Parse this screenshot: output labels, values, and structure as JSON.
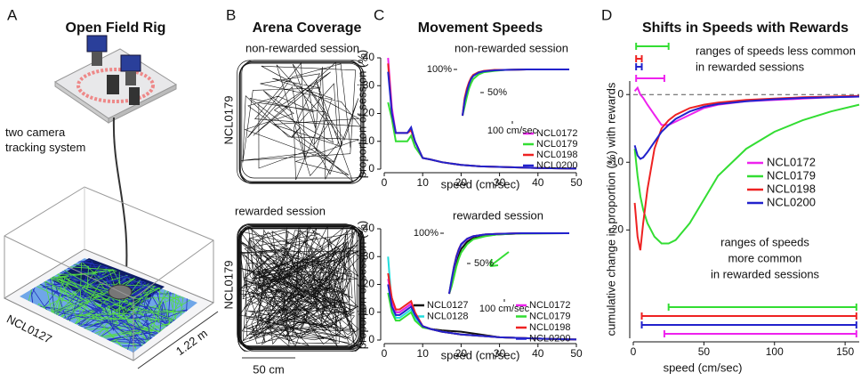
{
  "panels": {
    "A": {
      "letter": "A",
      "title": "Open Field Rig",
      "camera_label_lines": [
        "two camera",
        "tracking system"
      ],
      "animal": "NCL0127",
      "size": "1.22 m"
    },
    "B": {
      "letter": "B",
      "title": "Arena Coverage",
      "top_session": "non-rewarded session",
      "top_animal": "NCL0179",
      "bottom_session": "rewarded session",
      "bottom_animal": "NCL0179",
      "scale": "50 cm"
    },
    "C": {
      "letter": "C",
      "title": "Movement Speeds"
    },
    "D": {
      "letter": "D",
      "title": "Shifts in Speeds with Rewards"
    }
  },
  "chart_data": [
    {
      "type": "line",
      "subtitle": "non-rewarded session",
      "xlabel": "speed (cm/sec)",
      "ylabel": "proportion of session (%)",
      "xlim": [
        0,
        50
      ],
      "xticks": [
        0,
        10,
        20,
        30,
        40,
        50
      ],
      "ylim": [
        0,
        40
      ],
      "yticks": [
        0,
        10,
        20,
        30,
        40
      ],
      "x": [
        1,
        2,
        3,
        4,
        5,
        6,
        7,
        8,
        10,
        12,
        15,
        20,
        25,
        30,
        40,
        50
      ],
      "series": [
        {
          "name": "NCL0172",
          "color": "#ee22ee",
          "values": [
            40,
            22,
            13,
            13,
            13,
            13,
            14,
            10,
            4,
            3.5,
            2.5,
            1.5,
            1,
            0.8,
            0.4,
            0.2
          ],
          "cumulative": [
            0,
            35,
            55,
            70,
            80,
            86,
            93,
            96,
            98,
            99,
            100,
            100
          ]
        },
        {
          "name": "NCL0179",
          "color": "#33dd33",
          "values": [
            24,
            18,
            10,
            10,
            10,
            10,
            12,
            8,
            4,
            3.5,
            2.5,
            1.5,
            1,
            0.8,
            0.4,
            0.2
          ],
          "cumulative": [
            0,
            20,
            40,
            58,
            70,
            79,
            89,
            94,
            97,
            99,
            100,
            100
          ]
        },
        {
          "name": "NCL0198",
          "color": "#ee2222",
          "values": [
            38,
            20,
            13,
            13,
            13,
            13,
            14,
            10,
            4,
            3.5,
            2.5,
            1.5,
            1,
            0.8,
            0.4,
            0.2
          ],
          "cumulative": [
            0,
            38,
            58,
            72,
            82,
            88,
            94,
            97,
            99,
            99,
            100,
            100
          ]
        },
        {
          "name": "NCL0200",
          "color": "#2222cc",
          "values": [
            35,
            20,
            13,
            13,
            13,
            13,
            15,
            10,
            4,
            3.5,
            2.5,
            1.5,
            1,
            0.8,
            0.4,
            0.2
          ],
          "cumulative": [
            0,
            33,
            52,
            68,
            79,
            86,
            93,
            96,
            98,
            99,
            100,
            100
          ]
        }
      ],
      "inset": {
        "xlim": [
          0,
          100
        ],
        "ylim": [
          0,
          100
        ],
        "x": [
          0,
          2,
          4,
          6,
          8,
          10,
          15,
          20,
          30,
          40,
          60,
          100
        ],
        "yticks": [
          {
            "value": 100,
            "label": "100%"
          },
          {
            "value": 50,
            "label": "50%"
          }
        ],
        "xticks": [
          {
            "value": 100,
            "label": "100 cm/sec"
          }
        ]
      }
    },
    {
      "type": "line",
      "subtitle": "rewarded session",
      "xlabel": "speed (cm/sec)",
      "ylabel": "proportion of session (%)",
      "xlim": [
        0,
        50
      ],
      "xticks": [
        0,
        10,
        20,
        30,
        40,
        50
      ],
      "ylim": [
        0,
        40
      ],
      "yticks": [
        0,
        10,
        20,
        30,
        40
      ],
      "x": [
        1,
        2,
        3,
        4,
        5,
        6,
        7,
        8,
        10,
        12,
        15,
        20,
        25,
        30,
        40,
        50
      ],
      "series": [
        {
          "name": "NCL0127",
          "color": "#111111",
          "values": [
            20,
            15,
            10,
            10,
            11,
            12,
            13,
            9,
            5,
            4,
            3.5,
            3,
            2,
            1,
            0.5,
            0.2
          ],
          "cumulative": [
            0,
            15,
            35,
            52,
            65,
            74,
            86,
            92,
            96,
            98,
            99.5,
            100
          ]
        },
        {
          "name": "NCL0128",
          "color": "#22dddd",
          "values": [
            30,
            12,
            8,
            8,
            9,
            10,
            11,
            8,
            5,
            4,
            3,
            2,
            1.5,
            1,
            0.5,
            0.2
          ],
          "cumulative": [
            0,
            25,
            45,
            60,
            72,
            80,
            90,
            95,
            98,
            99,
            100,
            100
          ]
        },
        {
          "name": "NCL0172",
          "color": "#ee22ee",
          "values": [
            22,
            14,
            10,
            10,
            11,
            12,
            13,
            9,
            5,
            4,
            3,
            2,
            1.5,
            1,
            0.5,
            0.2
          ],
          "cumulative": [
            0,
            20,
            42,
            60,
            72,
            81,
            90,
            95,
            98,
            99,
            100,
            100
          ]
        },
        {
          "name": "NCL0179",
          "color": "#33dd33",
          "values": [
            17,
            10,
            7,
            7,
            8,
            9,
            10,
            7,
            4.5,
            4,
            3,
            2,
            1.5,
            1,
            0.5,
            0.2
          ],
          "cumulative": [
            0,
            12,
            28,
            45,
            58,
            68,
            82,
            90,
            95,
            98,
            99.5,
            100
          ]
        },
        {
          "name": "NCL0198",
          "color": "#ee2222",
          "values": [
            24,
            15,
            11,
            11,
            12,
            13,
            14,
            10,
            5,
            4,
            3,
            2,
            1.5,
            1,
            0.5,
            0.2
          ],
          "cumulative": [
            0,
            22,
            45,
            62,
            74,
            82,
            91,
            95,
            98,
            99,
            100,
            100
          ]
        },
        {
          "name": "NCL0200",
          "color": "#2222cc",
          "values": [
            20,
            12,
            9,
            9,
            10,
            11,
            12,
            9,
            5,
            4,
            3,
            2,
            1.5,
            1,
            0.5,
            0.2
          ],
          "cumulative": [
            0,
            22,
            44,
            61,
            73,
            82,
            91,
            95,
            98,
            99,
            100,
            100
          ]
        }
      ],
      "inset": {
        "xlim": [
          0,
          100
        ],
        "ylim": [
          0,
          100
        ],
        "x": [
          0,
          2,
          4,
          6,
          8,
          10,
          15,
          20,
          30,
          40,
          60,
          100
        ],
        "yticks": [
          {
            "value": 100,
            "label": "100%"
          },
          {
            "value": 50,
            "label": "50%"
          }
        ],
        "xticks": [
          {
            "value": 100,
            "label": "100 cm/sec"
          }
        ]
      }
    },
    {
      "type": "line",
      "xlabel": "speed (cm/sec)",
      "ylabel": "cumulative change in proportion (%) with rewards",
      "xlim": [
        0,
        160
      ],
      "xticks": [
        0,
        50,
        100,
        150
      ],
      "ylim": [
        -36,
        2
      ],
      "yticks": [
        0,
        -10,
        -20
      ],
      "hlines": [
        0
      ],
      "x": [
        1,
        3,
        5,
        7,
        10,
        15,
        20,
        25,
        30,
        40,
        50,
        60,
        80,
        100,
        120,
        140,
        160
      ],
      "series": [
        {
          "name": "NCL0172",
          "color": "#ee22ee",
          "values": [
            0.5,
            1,
            0,
            -0.5,
            -1.5,
            -3,
            -4.5,
            -4.5,
            -4,
            -3,
            -2,
            -1.5,
            -1,
            -0.8,
            -0.6,
            -0.4,
            -0.3
          ],
          "less_common": [
            2,
            22
          ],
          "more_common": [
            22,
            158
          ]
        },
        {
          "name": "NCL0179",
          "color": "#33dd33",
          "values": [
            -8,
            -12,
            -15,
            -17,
            -19,
            -21,
            -22,
            -22,
            -21.5,
            -19,
            -15.5,
            -12,
            -8,
            -5.5,
            -3.8,
            -2.5,
            -1.5
          ],
          "less_common": [
            2,
            25
          ],
          "more_common": [
            25,
            158
          ]
        },
        {
          "name": "NCL0198",
          "color": "#ee2222",
          "values": [
            -16,
            -21,
            -23,
            -19,
            -14,
            -8,
            -5,
            -3.8,
            -3,
            -2,
            -1.5,
            -1.2,
            -0.8,
            -0.6,
            -0.4,
            -0.3,
            -0.2
          ],
          "less_common": [
            2,
            6
          ],
          "more_common": [
            6,
            158
          ]
        },
        {
          "name": "NCL0200",
          "color": "#2222cc",
          "values": [
            -7.5,
            -9,
            -9.5,
            -9.3,
            -8.5,
            -7,
            -5.5,
            -4.5,
            -3.6,
            -2.5,
            -1.8,
            -1.4,
            -1,
            -0.7,
            -0.5,
            -0.4,
            -0.3
          ],
          "less_common": [
            2,
            6
          ],
          "more_common": [
            6,
            158
          ]
        }
      ],
      "annotations": {
        "less_common_lines": [
          "ranges of speeds less common",
          "in rewarded sessions"
        ],
        "more_common_lines": [
          "ranges of speeds",
          "more common",
          "in rewarded sessions"
        ]
      }
    }
  ]
}
